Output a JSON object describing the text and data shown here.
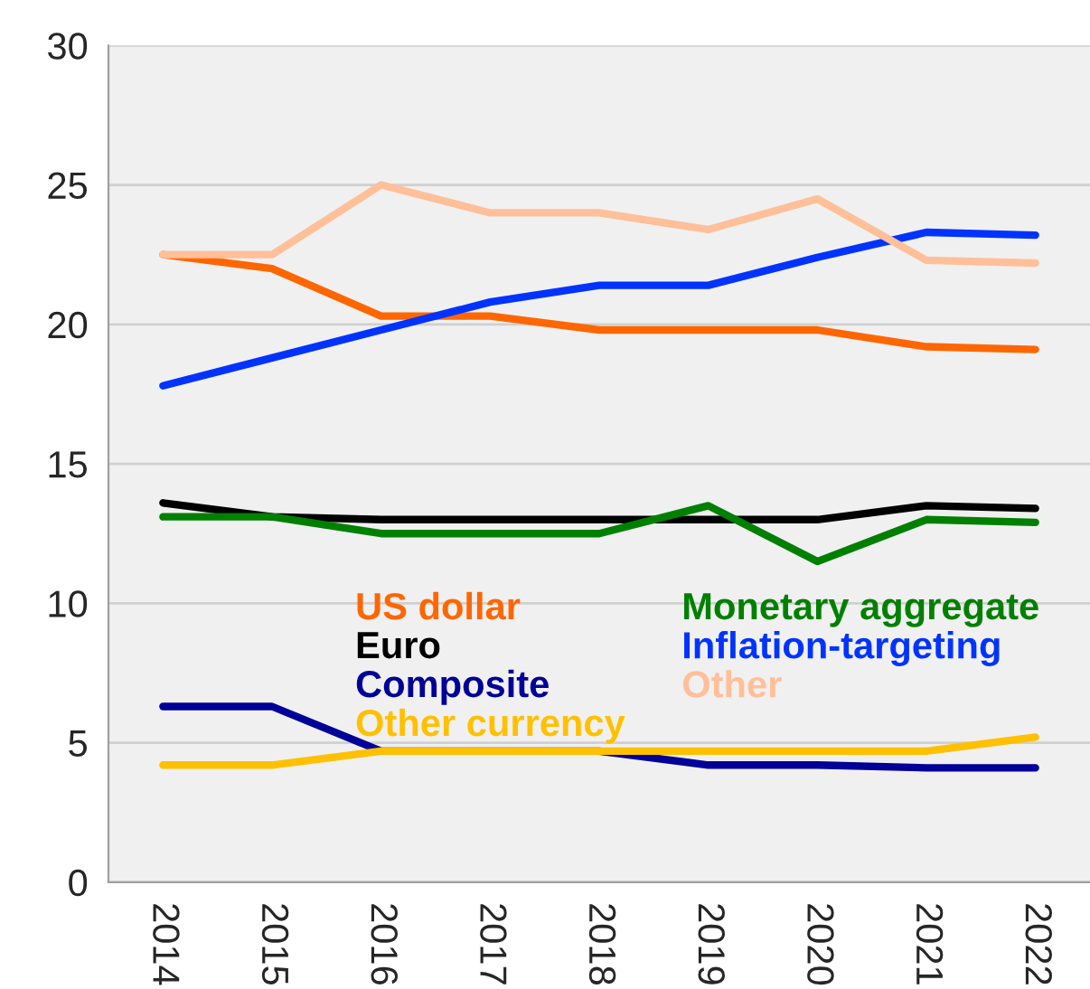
{
  "chart_data": {
    "type": "line",
    "categories": [
      "2014",
      "2015",
      "2016",
      "2017",
      "2018",
      "2019",
      "2020",
      "2021",
      "2022"
    ],
    "series": [
      {
        "name": "US dollar",
        "color": "#ff6600",
        "values": [
          22.5,
          22.0,
          20.3,
          20.3,
          19.8,
          19.8,
          19.8,
          19.2,
          19.1
        ]
      },
      {
        "name": "Euro",
        "color": "#000000",
        "values": [
          13.6,
          13.1,
          13.0,
          13.0,
          13.0,
          13.0,
          13.0,
          13.5,
          13.4
        ]
      },
      {
        "name": "Composite",
        "color": "#000099",
        "values": [
          6.3,
          6.3,
          4.7,
          4.7,
          4.7,
          4.2,
          4.2,
          4.1,
          4.1
        ]
      },
      {
        "name": "Other currency",
        "color": "#ffc000",
        "values": [
          4.2,
          4.2,
          4.7,
          4.7,
          4.7,
          4.7,
          4.7,
          4.7,
          5.2
        ]
      },
      {
        "name": "Monetary aggregate",
        "color": "#008000",
        "values": [
          13.1,
          13.1,
          12.5,
          12.5,
          12.5,
          13.5,
          11.5,
          13.0,
          12.9
        ]
      },
      {
        "name": "Inflation-targeting",
        "color": "#0033ff",
        "values": [
          17.8,
          18.8,
          19.8,
          20.8,
          21.4,
          21.4,
          22.4,
          23.3,
          23.2
        ]
      },
      {
        "name": "Other",
        "color": "#ffbf99",
        "values": [
          22.5,
          22.5,
          25.0,
          24.0,
          24.0,
          23.4,
          24.5,
          22.3,
          22.2
        ]
      }
    ],
    "ylim": [
      0,
      30
    ],
    "yticks": [
      0,
      5,
      10,
      15,
      20,
      25,
      30
    ],
    "grid": "y",
    "legend": "bottom",
    "marker": "none",
    "line_style": "solid"
  }
}
